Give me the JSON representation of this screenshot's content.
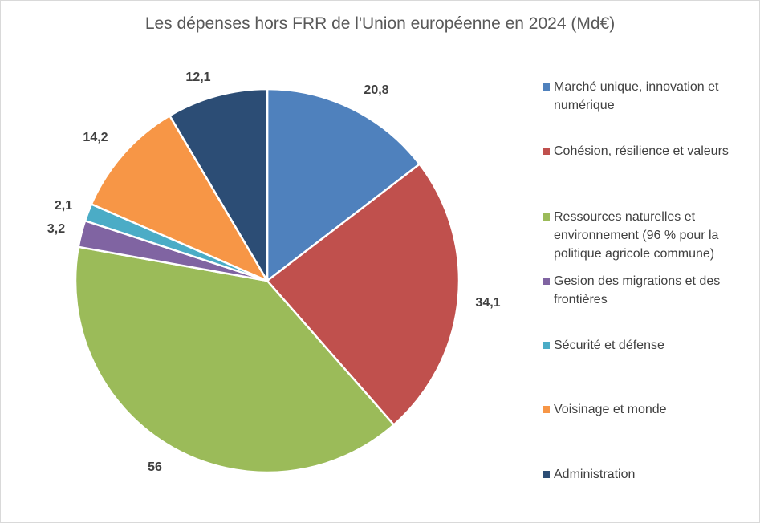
{
  "chart_data": {
    "type": "pie",
    "title": "Les dépenses hors FRR de l'Union européenne en 2024 (Md€)",
    "slices": [
      {
        "label": "Marché unique, innovation et numérique",
        "value": 20.8,
        "value_label": "20,8",
        "color": "#4f81bd"
      },
      {
        "label": "Cohésion, résilience et valeurs",
        "value": 34.1,
        "value_label": "34,1",
        "color": "#c0504d"
      },
      {
        "label": "Ressources naturelles et environnement (96 % pour la politique agricole commune)",
        "value": 56,
        "value_label": "56",
        "color": "#9bbb59"
      },
      {
        "label": "Gesion des migrations et des frontières",
        "value": 3.2,
        "value_label": "3,2",
        "color": "#8064a2"
      },
      {
        "label": "Sécurité et défense",
        "value": 2.1,
        "value_label": "2,1",
        "color": "#4bacc6"
      },
      {
        "label": "Voisinage et monde",
        "value": 14.2,
        "value_label": "14,2",
        "color": "#f79646"
      },
      {
        "label": "Administration",
        "value": 12.1,
        "value_label": "12,1",
        "color": "#2c4d75"
      }
    ],
    "legend_position": "right"
  }
}
